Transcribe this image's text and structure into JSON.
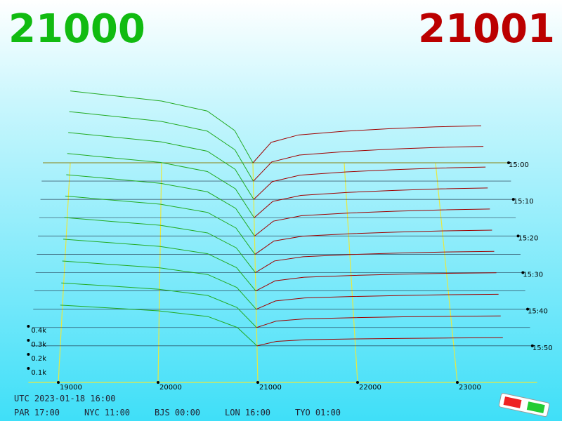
{
  "chart_data": {
    "type": "depth3d",
    "bid": "21000",
    "ask": "21001",
    "bid_color": "#11bb11",
    "ask_color": "#bb0000",
    "bid_line_color": "#22aa22",
    "ask_line_color": "#a00000",
    "grid_color": "#e8e840",
    "xlim": [
      18700,
      23800
    ],
    "xticks": [
      19000,
      20000,
      21000,
      22000,
      23000
    ],
    "ylim": [
      0,
      700
    ],
    "yticks": [
      {
        "value": 100,
        "label": "0.1k"
      },
      {
        "value": 200,
        "label": "0.2k"
      },
      {
        "value": 300,
        "label": "0.3k"
      },
      {
        "value": 400,
        "label": "0.4k"
      }
    ],
    "tlim": [
      900,
      960
    ],
    "tticks": [
      {
        "value": 900,
        "label": "15:00"
      },
      {
        "value": 910,
        "label": "15:10"
      },
      {
        "value": 920,
        "label": "15:20"
      },
      {
        "value": 930,
        "label": "15:30"
      },
      {
        "value": 940,
        "label": "15:40"
      },
      {
        "value": 950,
        "label": "15:50"
      }
    ],
    "bid_prices": [
      19000,
      19500,
      20000,
      20500,
      20800,
      21000
    ],
    "ask_prices": [
      21001,
      21200,
      21500,
      22000,
      22500,
      23000,
      23500
    ],
    "snapshots": [
      {
        "time": 900,
        "bid_depth": [
          640,
          595,
          550,
          461,
          288,
          0
        ],
        "ask_depth": [
          0,
          182,
          248,
          281,
          304,
          320,
          330
        ]
      },
      {
        "time": 905,
        "bid_depth": [
          606,
          564,
          521,
          436,
          273,
          0
        ],
        "ask_depth": [
          0,
          167,
          227,
          258,
          279,
          294,
          303
        ]
      },
      {
        "time": 910,
        "bid_depth": [
          572,
          532,
          492,
          412,
          257,
          0
        ],
        "ask_depth": [
          0,
          152,
          207,
          235,
          254,
          268,
          276
        ]
      },
      {
        "time": 915,
        "bid_depth": [
          538,
          500,
          463,
          387,
          242,
          0
        ],
        "ask_depth": [
          0,
          137,
          187,
          212,
          229,
          242,
          249
        ]
      },
      {
        "time": 920,
        "bid_depth": [
          504,
          469,
          433,
          363,
          227,
          0
        ],
        "ask_depth": [
          0,
          122,
          167,
          189,
          204,
          215,
          222
        ]
      },
      {
        "time": 925,
        "bid_depth": [
          470,
          437,
          404,
          338,
          212,
          0
        ],
        "ask_depth": [
          0,
          107,
          146,
          166,
          179,
          189,
          195
        ]
      },
      {
        "time": 930,
        "bid_depth": [
          436,
          405,
          375,
          314,
          196,
          0
        ],
        "ask_depth": [
          0,
          92,
          126,
          143,
          155,
          163,
          168
        ]
      },
      {
        "time": 935,
        "bid_depth": [
          402,
          374,
          346,
          289,
          181,
          0
        ],
        "ask_depth": [
          0,
          78,
          106,
          120,
          130,
          137,
          141
        ]
      },
      {
        "time": 940,
        "bid_depth": [
          368,
          342,
          316,
          265,
          166,
          0
        ],
        "ask_depth": [
          0,
          63,
          86,
          97,
          105,
          111,
          114
        ]
      },
      {
        "time": 945,
        "bid_depth": [
          334,
          311,
          287,
          240,
          150,
          0
        ],
        "ask_depth": [
          0,
          48,
          65,
          74,
          80,
          84,
          87
        ]
      },
      {
        "time": 950,
        "bid_depth": [
          300,
          279,
          258,
          216,
          135,
          0
        ],
        "ask_depth": [
          0,
          33,
          45,
          51,
          55,
          58,
          60
        ]
      }
    ],
    "utc": "UTC 2023-01-18 16:00",
    "clocks": [
      "PAR 17:00",
      "NYC 11:00",
      "BJS 00:00",
      "LON 16:00",
      "TYO 01:00"
    ]
  }
}
